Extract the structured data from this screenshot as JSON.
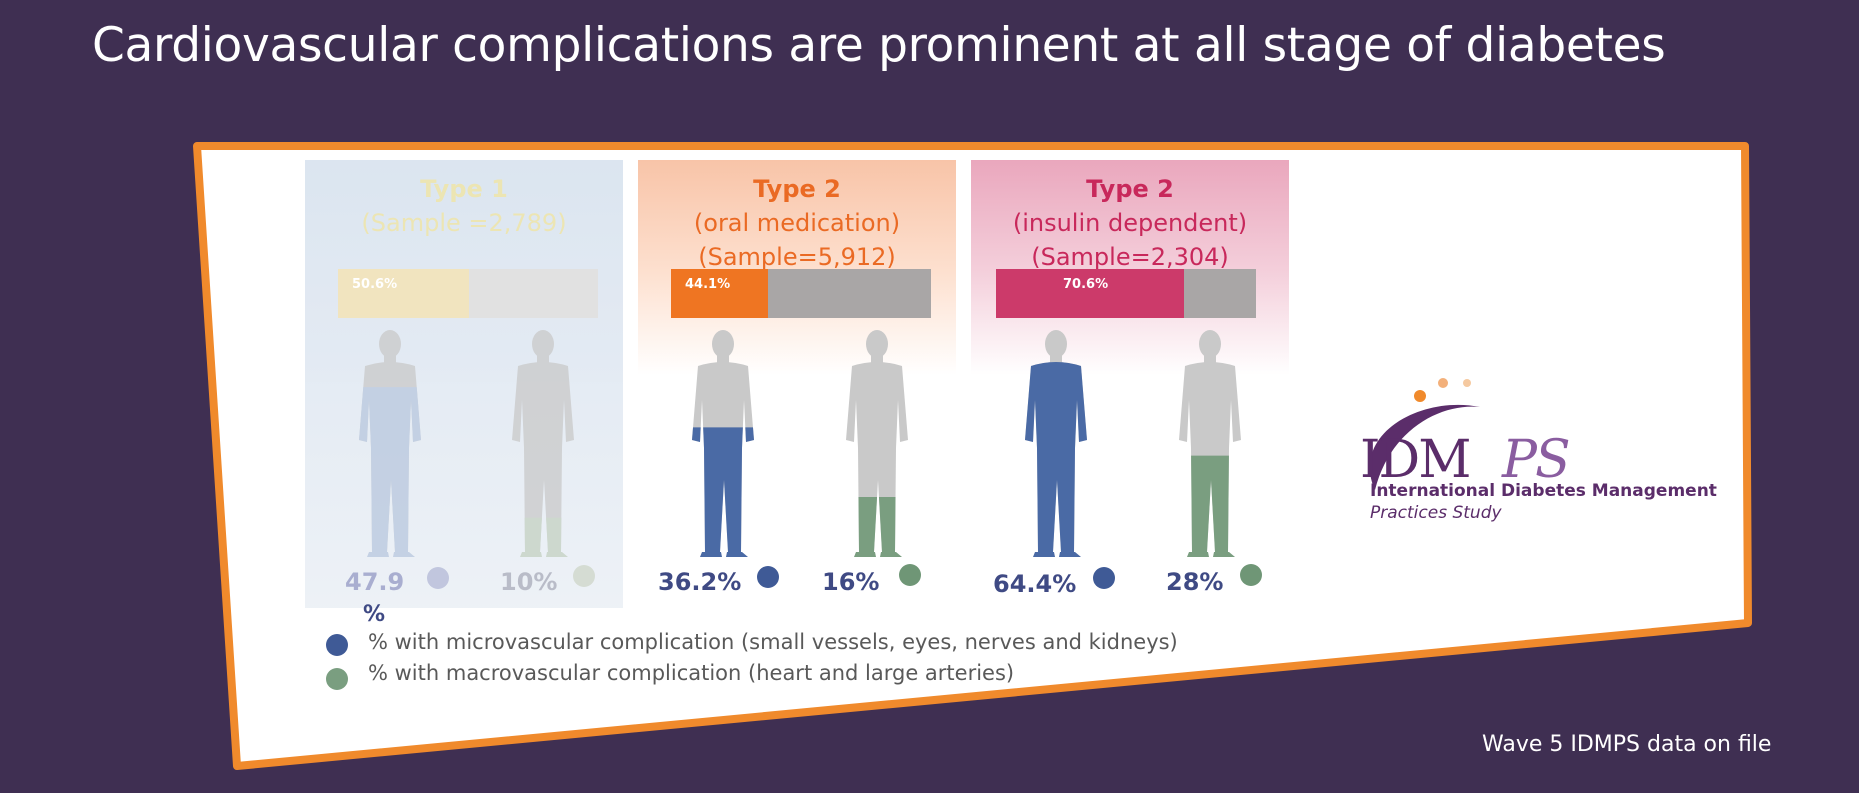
{
  "slide": {
    "title": "Cardiovascular complications are prominent at all stage of diabetes",
    "footnote": "Wave 5 IDMPS data on file"
  },
  "colors": {
    "background": "#3f2f52",
    "panel_border": "#f08a2c",
    "micro": "#4a6aa5",
    "macro": "#7a9e80",
    "type1_accent": "#efe0a8",
    "type2_oral_accent": "#ef7522",
    "type2_insulin_accent": "#cc3a6a"
  },
  "columns": [
    {
      "type_label": "Type 1",
      "sample_label": "(Sample =2,789)",
      "bar_label": "50.6%",
      "bar_fraction": 0.506,
      "micro_value": "47.9",
      "micro_suffix": "%",
      "macro_value": "10%",
      "micro_fraction": 0.479,
      "macro_fraction": 0.1,
      "faded": true
    },
    {
      "type_label": "Type 2",
      "sub_label": "(oral medication)",
      "sample_label": "(Sample=5,912)",
      "bar_label": "44.1%",
      "bar_fraction": 0.441,
      "micro_value": "36.2%",
      "macro_value": "16%",
      "micro_fraction": 0.362,
      "macro_fraction": 0.16,
      "faded": false
    },
    {
      "type_label": "Type 2",
      "sub_label": "(insulin dependent)",
      "sample_label": "(Sample=2,304)",
      "bar_label": "70.6%",
      "bar_fraction": 0.706,
      "micro_value": "64.4%",
      "macro_value": "28%",
      "micro_fraction": 0.644,
      "macro_fraction": 0.28,
      "faded": false
    }
  ],
  "legend": {
    "micro": "% with microvascular complication (small vessels, eyes, nerves and  kidneys)",
    "macro": "% with macrovascular complication (heart and large arteries)"
  },
  "logo": {
    "mark_a": "IDM",
    "mark_b": "PS",
    "line1": "International Diabetes Management",
    "line2": "Practices Study"
  }
}
